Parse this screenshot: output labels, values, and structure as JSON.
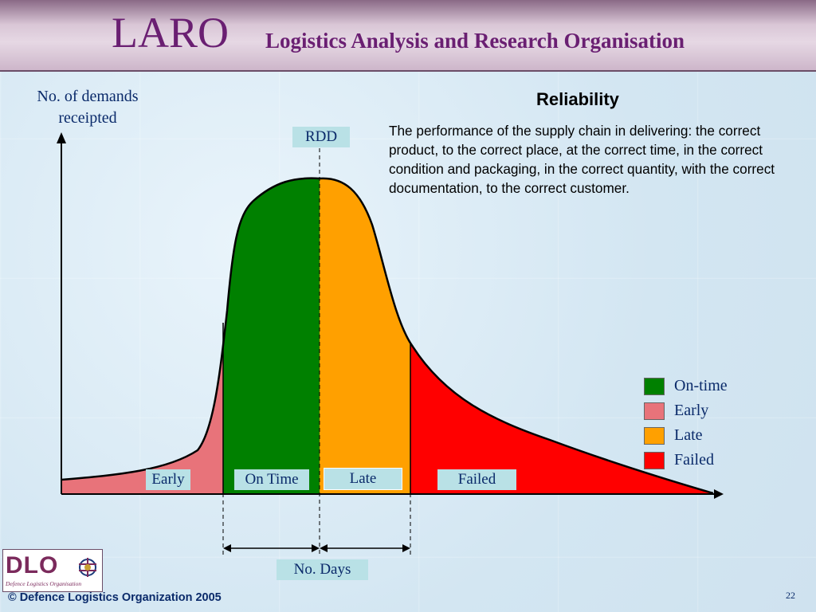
{
  "header": {
    "title_main": "LARO",
    "title_sub": "Logistics Analysis and Research Organisation"
  },
  "chart_data": {
    "type": "area",
    "ylabel": "No. of demands receipted",
    "xlabel": "No. Days",
    "reference_line": "RDD",
    "regions": [
      {
        "name": "Early",
        "color": "#e8737a"
      },
      {
        "name": "On Time",
        "color": "#008000"
      },
      {
        "name": "Late",
        "color": "#ffa000"
      },
      {
        "name": "Failed",
        "color": "#ff0000"
      }
    ]
  },
  "ylabel_lines": [
    "No. of demands",
    "receipted"
  ],
  "rdd_label": "RDD",
  "region_labels": {
    "early": "Early",
    "on_time": "On Time",
    "late": "Late",
    "failed": "Failed"
  },
  "xlabel": "No. Days",
  "reliability": {
    "title": "Reliability",
    "text": "The performance of the supply chain in delivering: the correct product, to the correct place, at the correct time, in the correct condition and packaging, in the correct quantity, with the correct documentation, to the correct customer."
  },
  "legend": [
    {
      "label": "On-time",
      "color": "#008000"
    },
    {
      "label": "Early",
      "color": "#e8737a"
    },
    {
      "label": "Late",
      "color": "#ffa000"
    },
    {
      "label": "Failed",
      "color": "#ff0000"
    }
  ],
  "footer": {
    "copyright": "© Defence Logistics Organization 2005",
    "page_number": "22"
  },
  "logo": {
    "letters": "DLO",
    "subtitle": "Defence Logistics Organisation",
    "icon": "emblem-icon"
  }
}
